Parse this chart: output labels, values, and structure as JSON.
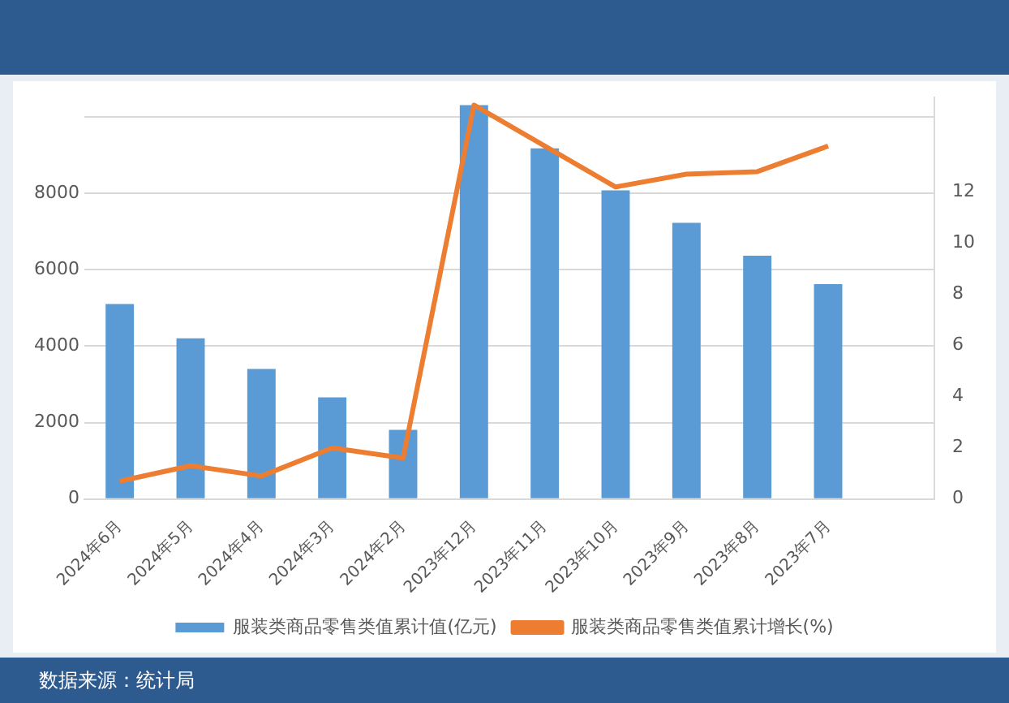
{
  "chart_data": {
    "type": "bar",
    "categories": [
      "2024年6月",
      "2024年5月",
      "2024年4月",
      "2024年3月",
      "2024年2月",
      "2023年12月",
      "2023年11月",
      "2023年10月",
      "2023年9月",
      "2023年8月",
      "2023年7月",
      null
    ],
    "series": [
      {
        "name": "服装类商品零售类值累计值(亿元)",
        "color": "#5b9bd5",
        "values": [
          5100,
          4200,
          3400,
          2660,
          1810,
          10300,
          9170,
          8070,
          7220,
          6360,
          5620,
          null
        ]
      },
      {
        "name": "服装类商品零售类值累计增长(%)",
        "type": "line",
        "axis": "y2",
        "color": "#ed7d31",
        "values": [
          0.7,
          1.3,
          0.9,
          2.0,
          1.6,
          15.4,
          13.8,
          12.2,
          12.7,
          12.8,
          13.8,
          null
        ]
      }
    ],
    "ylim": [
      0,
      10500
    ],
    "yticks": [
      0,
      2000,
      4000,
      6000,
      8000,
      {
        "value": 10000,
        "label": null
      }
    ],
    "y2lim": [
      0,
      15.7
    ],
    "y2ticks": [
      0,
      2,
      4,
      6,
      8,
      10,
      12
    ],
    "grid": "y",
    "legend": "bottom",
    "marker": "none",
    "annotations": [
      "数据来源：统计局"
    ]
  }
}
